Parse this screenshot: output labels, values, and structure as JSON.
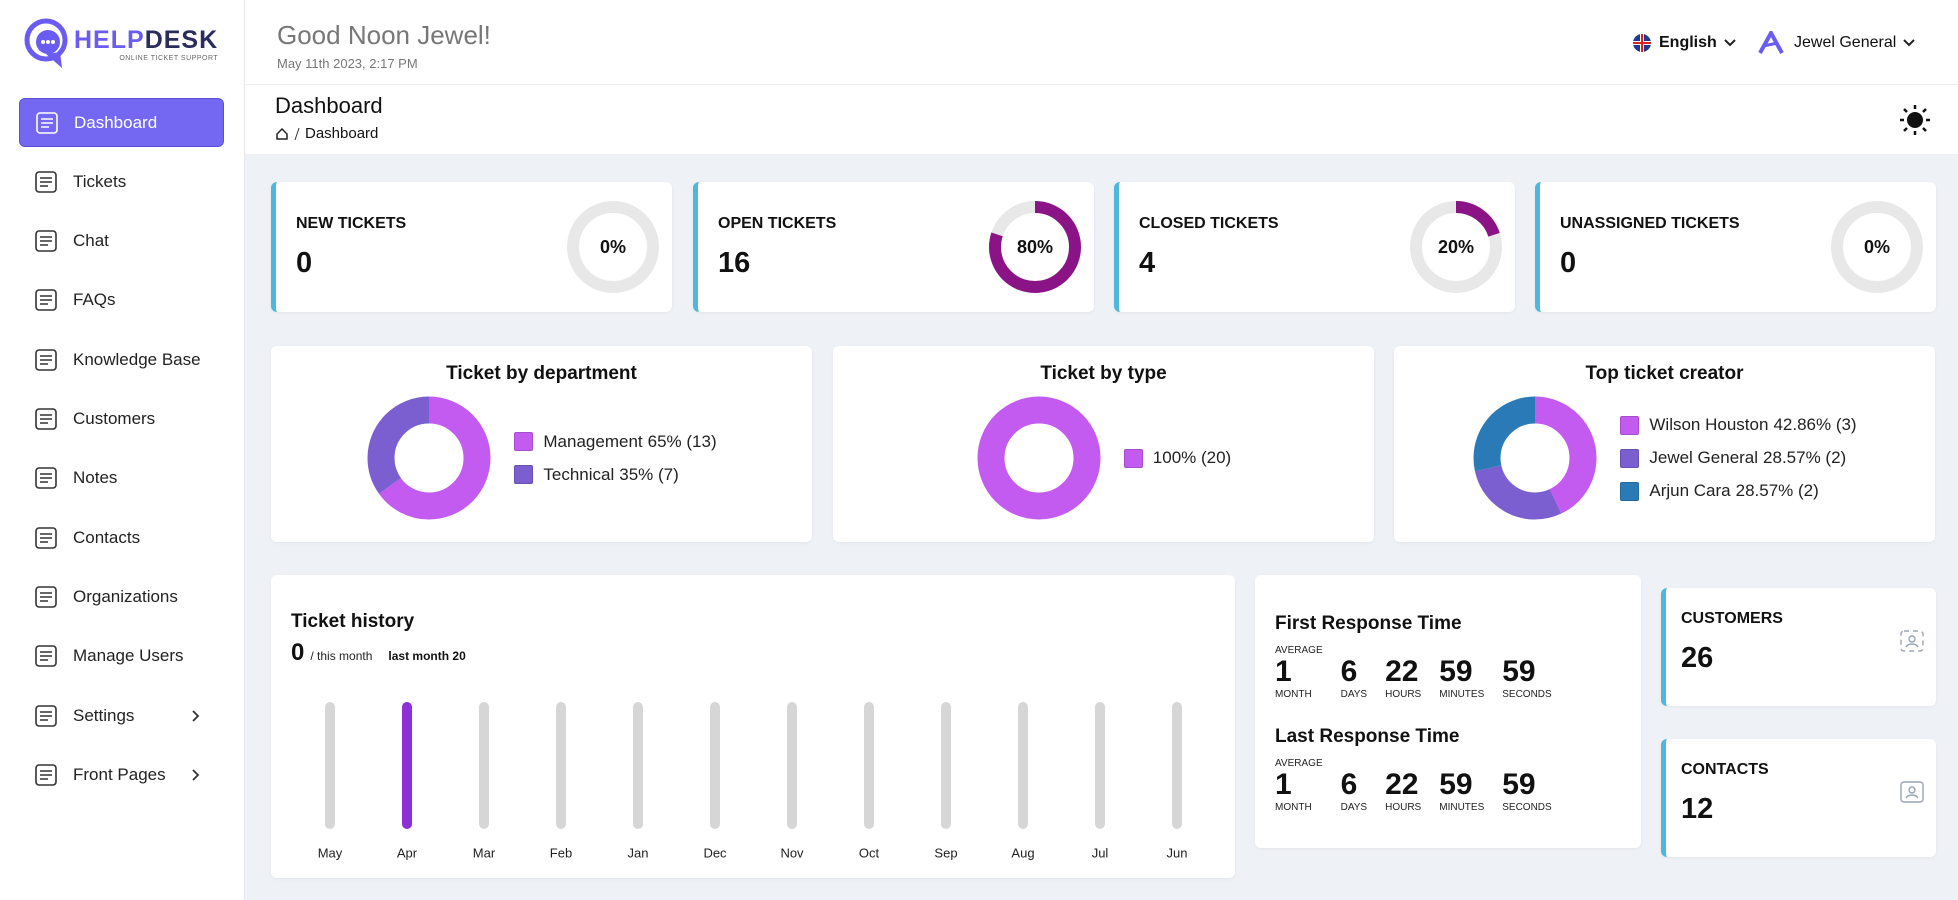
{
  "brand": {
    "name_a": "HELP",
    "name_b": "DESK",
    "tagline": "ONLINE TICKET SUPPORT"
  },
  "header": {
    "greeting": "Good Noon Jewel!",
    "datetime": "May 11th 2023, 2:17 PM",
    "language": "English",
    "user": "Jewel General"
  },
  "sidebar": {
    "items": [
      {
        "label": "Dashboard",
        "active": true
      },
      {
        "label": "Tickets"
      },
      {
        "label": "Chat"
      },
      {
        "label": "FAQs"
      },
      {
        "label": "Knowledge Base"
      },
      {
        "label": "Customers"
      },
      {
        "label": "Notes"
      },
      {
        "label": "Contacts"
      },
      {
        "label": "Organizations"
      },
      {
        "label": "Manage Users"
      },
      {
        "label": "Settings",
        "submenu": true
      },
      {
        "label": "Front Pages",
        "submenu": true
      }
    ]
  },
  "page": {
    "title": "Dashboard",
    "breadcrumb": "Dashboard"
  },
  "stat_cards": [
    {
      "label": "NEW TICKETS",
      "count": 0,
      "percent": 0,
      "percent_label": "0%"
    },
    {
      "label": "OPEN TICKETS",
      "count": 16,
      "percent": 80,
      "percent_label": "80%"
    },
    {
      "label": "CLOSED TICKETS",
      "count": 4,
      "percent": 20,
      "percent_label": "20%"
    },
    {
      "label": "UNASSIGNED TICKETS",
      "count": 0,
      "percent": 0,
      "percent_label": "0%"
    }
  ],
  "charts": [
    {
      "title": "Ticket by department",
      "type": "donut",
      "series": [
        {
          "name": "Management",
          "value": 65,
          "value_label": "65% (13)",
          "color": "#c45bf0"
        },
        {
          "name": "Technical",
          "value": 35,
          "value_label": "35% (7)",
          "color": "#7b5fd0"
        }
      ]
    },
    {
      "title": "Ticket by type",
      "type": "donut",
      "series": [
        {
          "value": 100,
          "value_label": "100% (20)",
          "color": "#c45bf0"
        }
      ]
    },
    {
      "title": "Top ticket creator",
      "type": "donut",
      "series": [
        {
          "name": "Wilson Houston",
          "value": 42.86,
          "value_label": "42.86% (3)",
          "color": "#c45bf0"
        },
        {
          "name": "Jewel General",
          "value": 28.57,
          "value_label": "28.57% (2)",
          "color": "#7b5fd0"
        },
        {
          "name": "Arjun Cara",
          "value": 28.57,
          "value_label": "28.57% (2)",
          "color": "#2a7ab8"
        }
      ]
    }
  ],
  "ticket_history": {
    "title": "Ticket history",
    "this_month": 0,
    "this_month_label": "/ this month",
    "last_month_label": "last month 20",
    "type": "bar",
    "categories": [
      "May",
      "Apr",
      "Mar",
      "Feb",
      "Jan",
      "Dec",
      "Nov",
      "Oct",
      "Sep",
      "Aug",
      "Jul",
      "Jun"
    ],
    "values": [
      0,
      20,
      0,
      0,
      0,
      0,
      0,
      0,
      0,
      0,
      0,
      0
    ],
    "ylim": [
      0,
      20
    ],
    "color": "#8e2fd8"
  },
  "response_times": [
    {
      "title": "First Response Time",
      "average_label": "AVERAGE",
      "parts": [
        {
          "value": 1,
          "unit": "MONTH"
        },
        {
          "value": 6,
          "unit": "DAYS"
        },
        {
          "value": 22,
          "unit": "HOURS"
        },
        {
          "value": 59,
          "unit": "MINUTES"
        },
        {
          "value": 59,
          "unit": "SECONDS"
        }
      ]
    },
    {
      "title": "Last Response Time",
      "average_label": "AVERAGE",
      "parts": [
        {
          "value": 1,
          "unit": "MONTH"
        },
        {
          "value": 6,
          "unit": "DAYS"
        },
        {
          "value": 22,
          "unit": "HOURS"
        },
        {
          "value": 59,
          "unit": "MINUTES"
        },
        {
          "value": 59,
          "unit": "SECONDS"
        }
      ]
    }
  ],
  "summary_cards": [
    {
      "label": "CUSTOMERS",
      "count": 26
    },
    {
      "label": "CONTACTS",
      "count": 12
    }
  ]
}
